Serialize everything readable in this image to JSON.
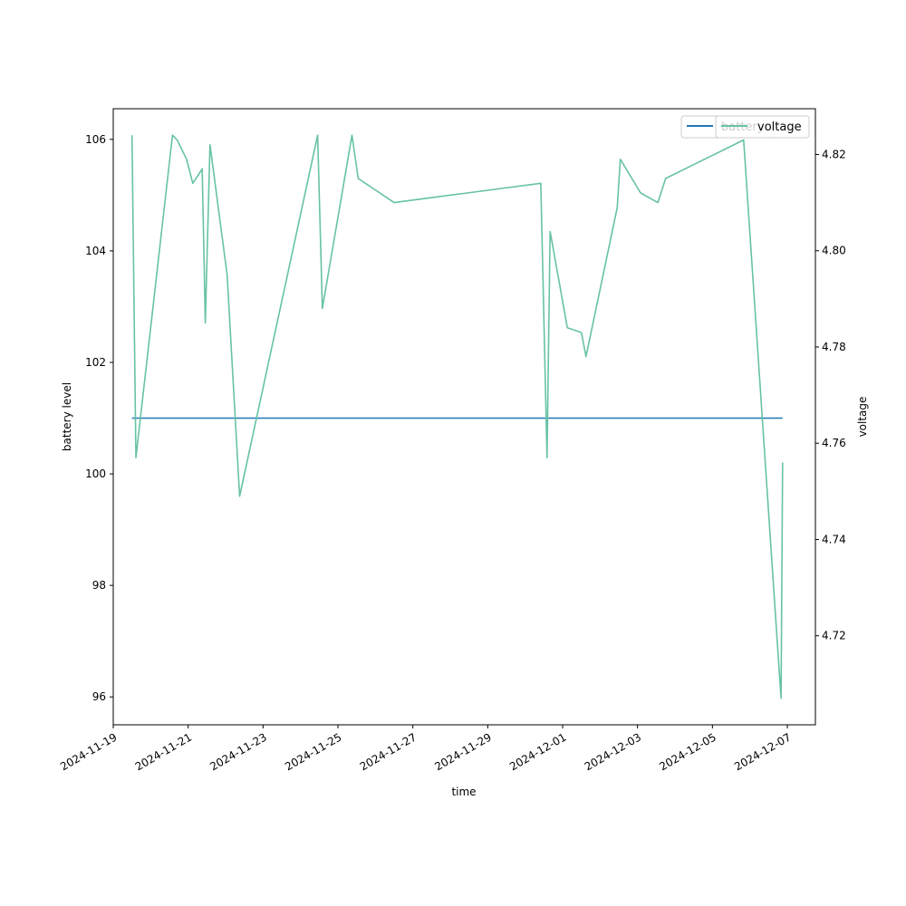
{
  "chart_data": {
    "type": "line",
    "xlabel": "time",
    "ylabel_left": "battery level",
    "ylabel_right": "voltage",
    "x_ticks": [
      "2024-11-19",
      "2024-11-21",
      "2024-11-23",
      "2024-11-25",
      "2024-11-27",
      "2024-11-29",
      "2024-12-01",
      "2024-12-03",
      "2024-12-05",
      "2024-12-07"
    ],
    "x_range": [
      "2024-11-19T00:00",
      "2024-12-07T18:00"
    ],
    "left_axis": {
      "ylim": [
        95.5,
        106.55
      ],
      "ticks": [
        96,
        98,
        100,
        102,
        104,
        106
      ]
    },
    "right_axis": {
      "ylim": [
        4.7015,
        4.8295
      ],
      "ticks": [
        "4.72",
        "4.74",
        "4.76",
        "4.78",
        "4.80",
        "4.82"
      ]
    },
    "legend": {
      "location": "top-right",
      "entries": [
        "battery",
        "voltage"
      ]
    },
    "colors": {
      "battery": "#1f77b4",
      "voltage": "#66c2a5"
    },
    "series": [
      {
        "name": "battery",
        "axis": "left",
        "points": [
          {
            "x": "2024-11-19T12:00",
            "y": 101
          },
          {
            "x": "2024-12-06T21:00",
            "y": 101
          }
        ]
      },
      {
        "name": "voltage",
        "axis": "right",
        "points": [
          {
            "x": "2024-11-19T12:00",
            "y": 4.824
          },
          {
            "x": "2024-11-19T14:30",
            "y": 4.757
          },
          {
            "x": "2024-11-20T14:00",
            "y": 4.824
          },
          {
            "x": "2024-11-20T17:00",
            "y": 4.823
          },
          {
            "x": "2024-11-20T23:00",
            "y": 4.819
          },
          {
            "x": "2024-11-21T03:00",
            "y": 4.814
          },
          {
            "x": "2024-11-21T09:00",
            "y": 4.817
          },
          {
            "x": "2024-11-21T11:00",
            "y": 4.785
          },
          {
            "x": "2024-11-21T14:00",
            "y": 4.822
          },
          {
            "x": "2024-11-22T01:00",
            "y": 4.795
          },
          {
            "x": "2024-11-22T09:00",
            "y": 4.749
          },
          {
            "x": "2024-11-24T11:00",
            "y": 4.824
          },
          {
            "x": "2024-11-24T14:00",
            "y": 4.788
          },
          {
            "x": "2024-11-25T09:00",
            "y": 4.824
          },
          {
            "x": "2024-11-25T13:00",
            "y": 4.815
          },
          {
            "x": "2024-11-26T12:00",
            "y": 4.81
          },
          {
            "x": "2024-11-30T10:00",
            "y": 4.814
          },
          {
            "x": "2024-11-30T14:00",
            "y": 4.757
          },
          {
            "x": "2024-11-30T16:00",
            "y": 4.804
          },
          {
            "x": "2024-12-01T03:00",
            "y": 4.784
          },
          {
            "x": "2024-12-01T12:00",
            "y": 4.783
          },
          {
            "x": "2024-12-01T15:00",
            "y": 4.778
          },
          {
            "x": "2024-12-02T11:00",
            "y": 4.809
          },
          {
            "x": "2024-12-02T13:00",
            "y": 4.819
          },
          {
            "x": "2024-12-03T02:00",
            "y": 4.812
          },
          {
            "x": "2024-12-03T13:00",
            "y": 4.81
          },
          {
            "x": "2024-12-03T18:00",
            "y": 4.815
          },
          {
            "x": "2024-12-05T20:00",
            "y": 4.823
          },
          {
            "x": "2024-12-06T20:00",
            "y": 4.707
          },
          {
            "x": "2024-12-06T21:00",
            "y": 4.756
          }
        ]
      }
    ]
  }
}
